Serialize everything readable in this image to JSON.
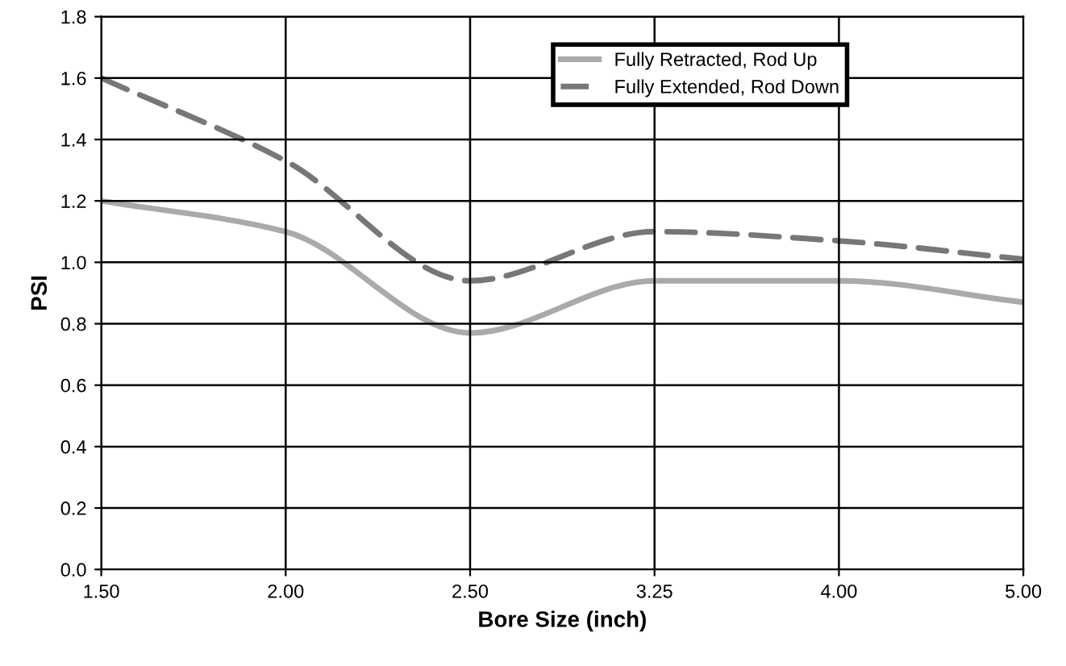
{
  "chart_data": {
    "type": "line",
    "xlabel": "Bore Size (inch)",
    "ylabel": "PSI",
    "categories": [
      "1.50",
      "2.00",
      "2.50",
      "3.25",
      "4.00",
      "5.00"
    ],
    "series": [
      {
        "name": "Fully Retracted, Rod Up",
        "color": "#aaaaaa",
        "line_style": "solid",
        "values": [
          1.2,
          1.1,
          0.77,
          0.94,
          0.94,
          0.87
        ]
      },
      {
        "name": "Fully Extended, Rod Down",
        "color": "#777777",
        "line_style": "dashed",
        "values": [
          1.6,
          1.33,
          0.94,
          1.1,
          1.07,
          1.01
        ]
      }
    ],
    "ylim": [
      0,
      1.8
    ],
    "yticks": [
      {
        "value": 0,
        "label": "0.0"
      },
      {
        "value": 0.2,
        "label": "0.2"
      },
      {
        "value": 0.4,
        "label": "0.4"
      },
      {
        "value": 0.6,
        "label": "0.6"
      },
      {
        "value": 0.8,
        "label": "0.8"
      },
      {
        "value": 1.0,
        "label": "1.0"
      },
      {
        "value": 1.2,
        "label": "1.2"
      },
      {
        "value": 1.4,
        "label": "1.4"
      },
      {
        "value": 1.6,
        "label": "1.6"
      },
      {
        "value": 1.8,
        "label": "1.8"
      }
    ],
    "grid": true,
    "legend": "top right",
    "marker": "none"
  }
}
